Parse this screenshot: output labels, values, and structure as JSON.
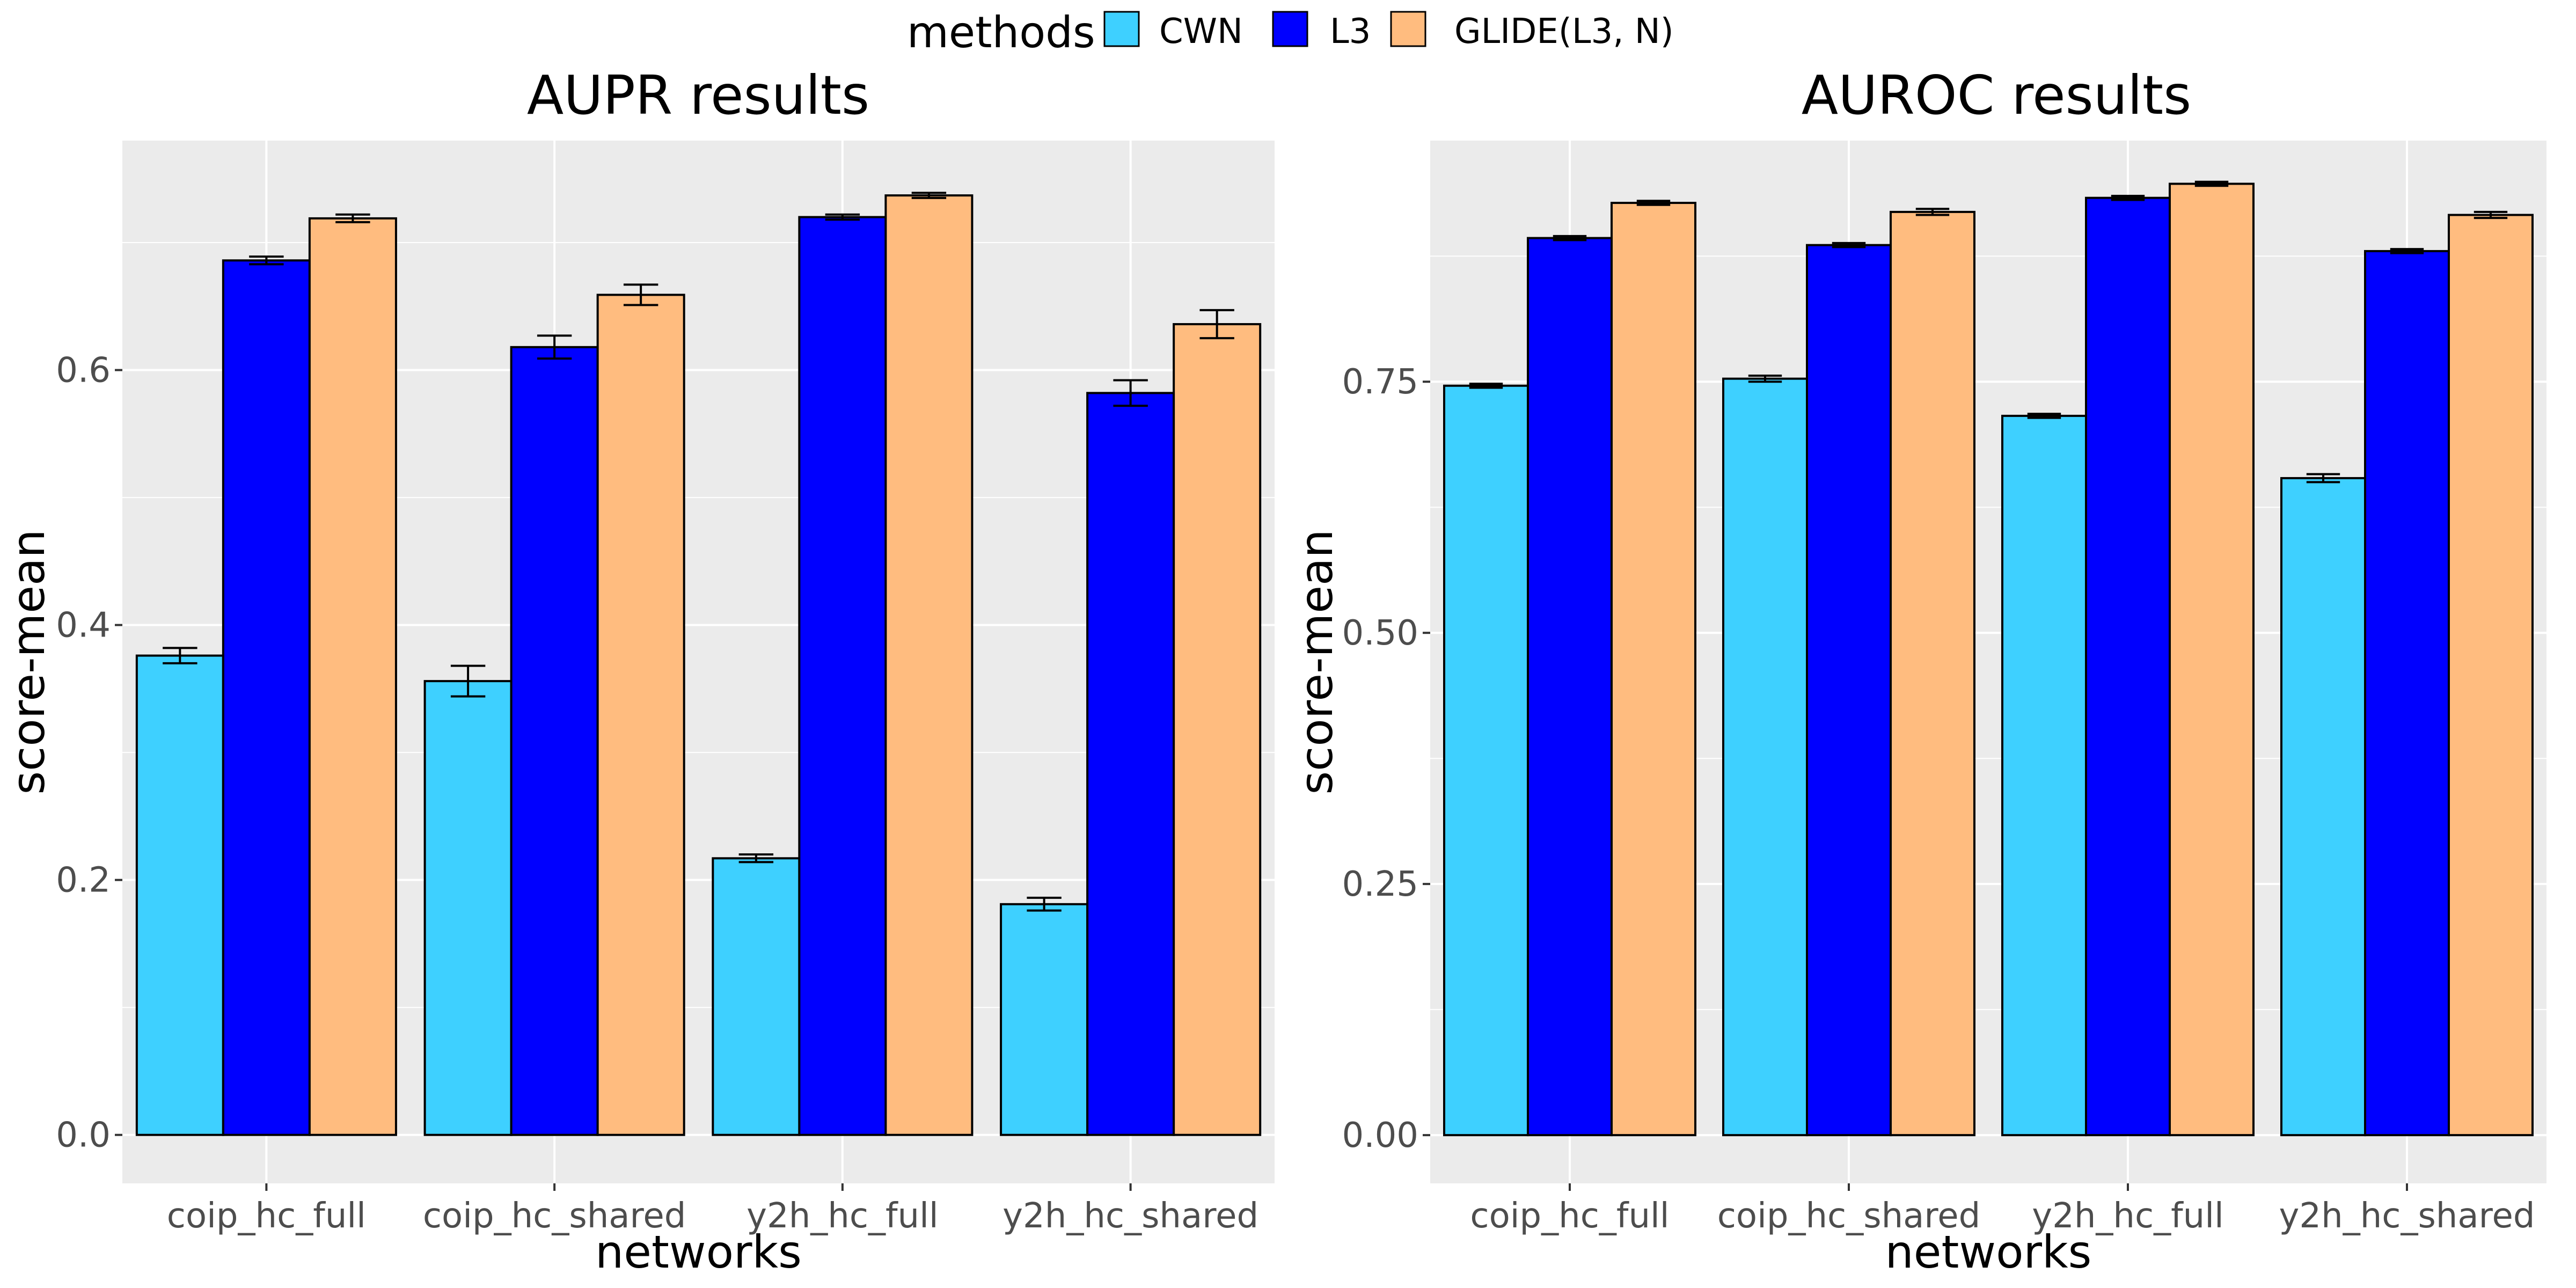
{
  "legend": {
    "title": "methods",
    "items": [
      {
        "label": "CWN",
        "color": "#3ED0FF"
      },
      {
        "label": "L3",
        "color": "#0000FF"
      },
      {
        "label": "GLIDE(L3, N)",
        "color": "#FFBC7F"
      }
    ]
  },
  "chart_data": [
    {
      "type": "bar",
      "title": "AUPR results",
      "xlabel": "networks",
      "ylabel": "score-mean",
      "categories": [
        "coip_hc_full",
        "coip_hc_shared",
        "y2h_hc_full",
        "y2h_hc_shared"
      ],
      "ylim": [
        -0.038,
        0.78
      ],
      "yticks": [
        0.0,
        0.2,
        0.4,
        0.6
      ],
      "ytick_labels": [
        "0.0",
        "0.2",
        "0.4",
        "0.6"
      ],
      "grid": true,
      "series": [
        {
          "name": "CWN",
          "values": [
            0.376,
            0.356,
            0.217,
            0.181
          ],
          "err": [
            0.006,
            0.012,
            0.003,
            0.005
          ]
        },
        {
          "name": "L3",
          "values": [
            0.686,
            0.618,
            0.72,
            0.582
          ],
          "err": [
            0.003,
            0.009,
            0.002,
            0.01
          ]
        },
        {
          "name": "GLIDE(L3, N)",
          "values": [
            0.719,
            0.659,
            0.737,
            0.636
          ],
          "err": [
            0.003,
            0.008,
            0.002,
            0.011
          ]
        }
      ]
    },
    {
      "type": "bar",
      "title": "AUROC results",
      "xlabel": "networks",
      "ylabel": "score-mean",
      "categories": [
        "coip_hc_full",
        "coip_hc_shared",
        "y2h_hc_full",
        "y2h_hc_shared"
      ],
      "ylim": [
        -0.048,
        0.99
      ],
      "yticks": [
        0.0,
        0.25,
        0.5,
        0.75
      ],
      "ytick_labels": [
        "0.00",
        "0.25",
        "0.50",
        "0.75"
      ],
      "grid": true,
      "series": [
        {
          "name": "CWN",
          "values": [
            0.746,
            0.753,
            0.716,
            0.654
          ],
          "err": [
            0.002,
            0.003,
            0.002,
            0.004
          ]
        },
        {
          "name": "L3",
          "values": [
            0.893,
            0.886,
            0.933,
            0.88
          ],
          "err": [
            0.002,
            0.002,
            0.002,
            0.002
          ]
        },
        {
          "name": "GLIDE(L3, N)",
          "values": [
            0.928,
            0.919,
            0.947,
            0.916
          ],
          "err": [
            0.002,
            0.003,
            0.002,
            0.003
          ]
        }
      ]
    }
  ]
}
